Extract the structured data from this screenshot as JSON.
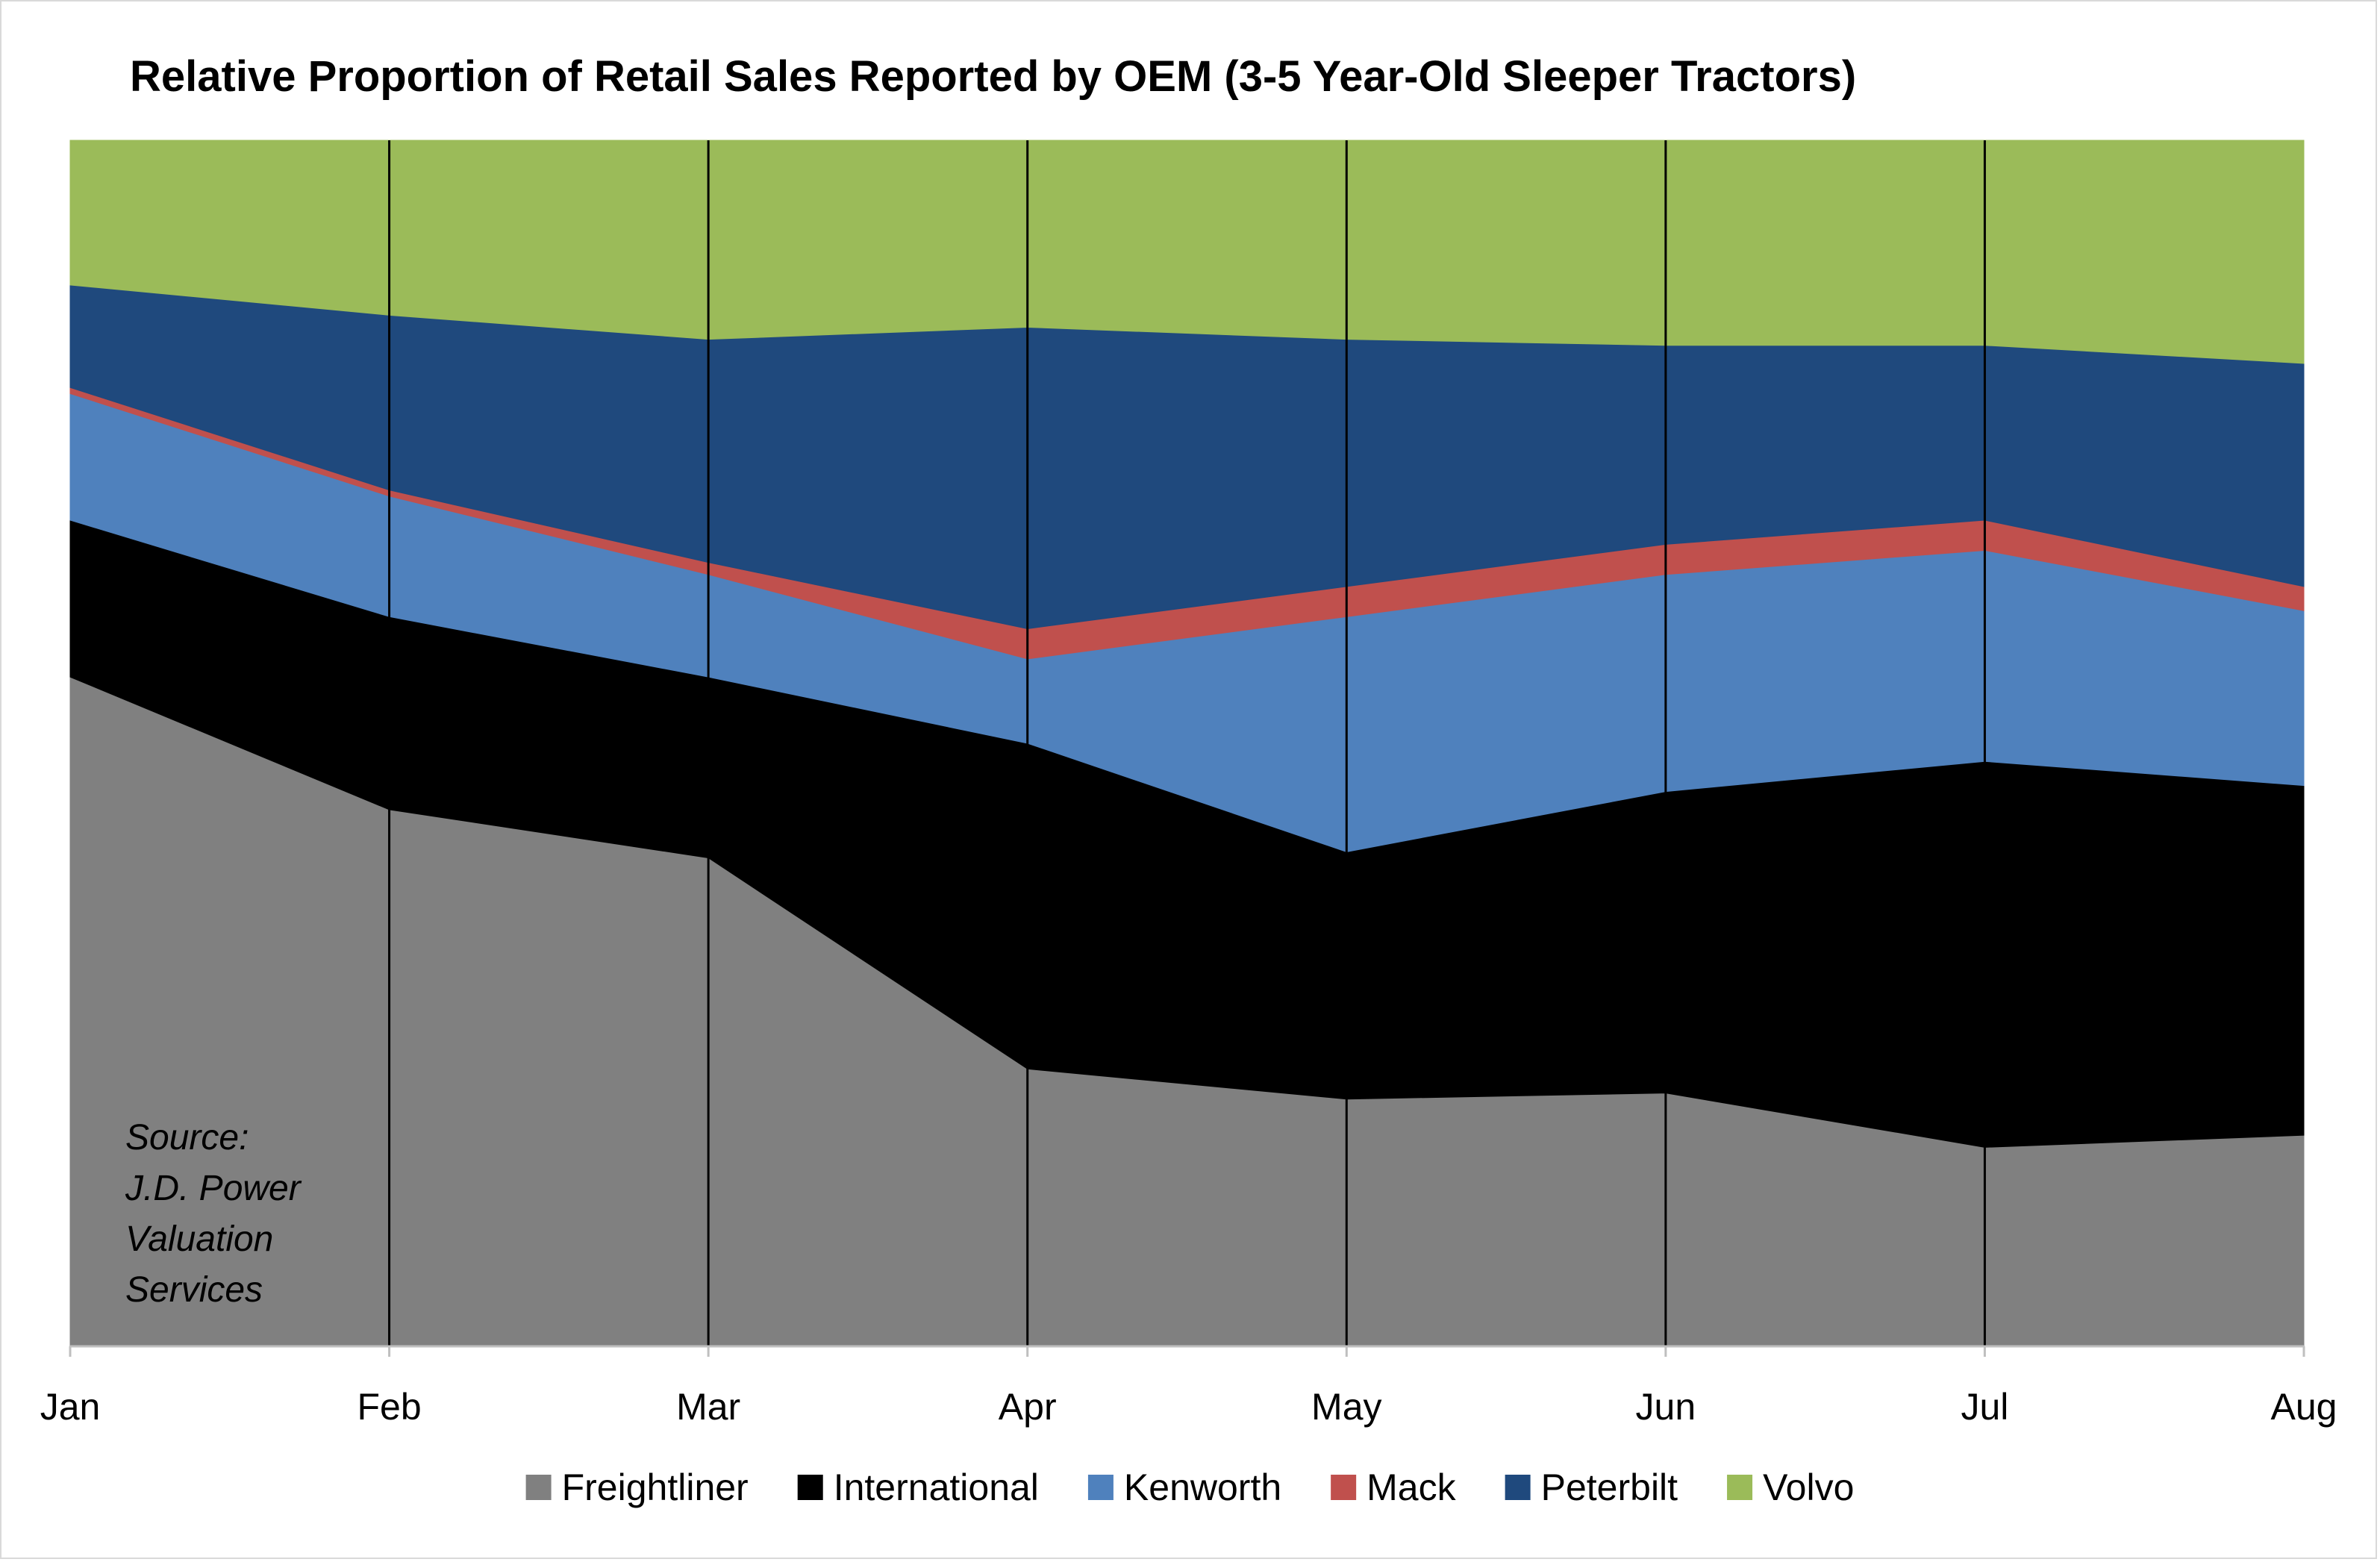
{
  "chart_data": {
    "type": "area",
    "stacked": true,
    "normalized": true,
    "title": "Relative Proportion of Retail Sales Reported by OEM (3-5 Year-Old Sleeper Tractors)",
    "source_lines": [
      "Source:",
      "J.D. Power",
      "Valuation",
      "Services"
    ],
    "x": [
      "Jan",
      "Feb",
      "Mar",
      "Apr",
      "May",
      "Jun",
      "Jul",
      "Aug"
    ],
    "ylim": [
      0,
      100
    ],
    "legend_position": "bottom",
    "series": [
      {
        "name": "Freightliner",
        "color": "#808080",
        "values": [
          55.5,
          44.5,
          40.5,
          23.0,
          20.5,
          21.0,
          16.5,
          17.5
        ]
      },
      {
        "name": "International",
        "color": "#000000",
        "values": [
          13.0,
          16.0,
          15.0,
          27.0,
          20.5,
          25.0,
          32.0,
          29.0
        ]
      },
      {
        "name": "Kenworth",
        "color": "#4f81bd",
        "values": [
          10.5,
          10.0,
          8.5,
          7.0,
          19.5,
          18.0,
          17.5,
          14.5
        ]
      },
      {
        "name": "Mack",
        "color": "#c0504d",
        "values": [
          0.5,
          0.5,
          1.0,
          2.5,
          2.5,
          2.5,
          2.5,
          2.0
        ]
      },
      {
        "name": "Peterbilt",
        "color": "#1f497d",
        "values": [
          8.5,
          14.5,
          18.5,
          25.0,
          20.5,
          16.5,
          14.5,
          18.5
        ]
      },
      {
        "name": "Volvo",
        "color": "#9bbb59",
        "values": [
          12.0,
          14.5,
          16.5,
          15.5,
          16.5,
          17.0,
          17.0,
          18.5
        ]
      }
    ]
  }
}
